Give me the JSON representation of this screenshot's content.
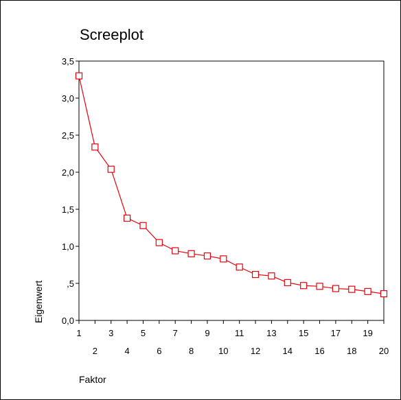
{
  "chart_data": {
    "type": "line",
    "title": "Screeplot",
    "xlabel": "Faktor",
    "ylabel": "Eigenwert",
    "x": [
      1,
      2,
      3,
      4,
      5,
      6,
      7,
      8,
      9,
      10,
      11,
      12,
      13,
      14,
      15,
      16,
      17,
      18,
      19,
      20
    ],
    "series": [
      {
        "values": [
          3.3,
          2.34,
          2.04,
          1.38,
          1.28,
          1.05,
          0.94,
          0.9,
          0.87,
          0.83,
          0.72,
          0.62,
          0.6,
          0.51,
          0.47,
          0.46,
          0.43,
          0.42,
          0.39,
          0.36
        ],
        "color": "#e8000b",
        "marker": "square-open"
      }
    ],
    "xlim": [
      1,
      20
    ],
    "ylim": [
      0,
      3.5
    ],
    "x_tick_labels_row1": [
      "1",
      "3",
      "5",
      "7",
      "9",
      "11",
      "13",
      "15",
      "17",
      "19"
    ],
    "x_tick_labels_row2": [
      "2",
      "4",
      "6",
      "8",
      "10",
      "12",
      "14",
      "16",
      "18",
      "20"
    ],
    "y_ticks": [
      0,
      0.5,
      1.0,
      1.5,
      2.0,
      2.5,
      3.0,
      3.5
    ],
    "y_tick_labels": [
      "0,0",
      ",5",
      "1,0",
      "1,5",
      "2,0",
      "2,5",
      "3,0",
      "3,5"
    ],
    "grid": false
  }
}
